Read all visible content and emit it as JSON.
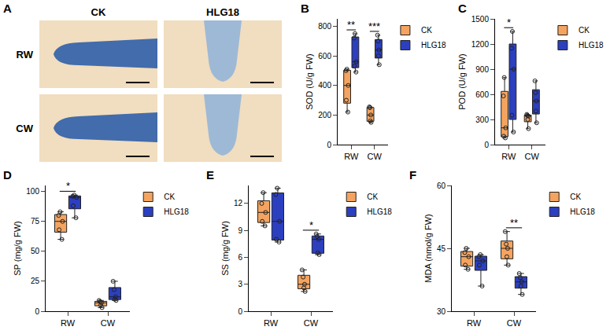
{
  "panel_A": {
    "panel_label": "A",
    "columns": [
      "CK",
      "HLG18"
    ],
    "rows": [
      "RW",
      "CW"
    ]
  },
  "chart_data": [
    {
      "type": "box",
      "panel_label": "B",
      "y_label": "SOD (U/g FW)",
      "categories": [
        "RW",
        "CW"
      ],
      "series": [
        {
          "name": "CK",
          "color": "#F4A460",
          "values": [
            [
              510,
              500,
              400,
              300,
              220
            ],
            [
              150,
              160,
              200,
              250,
              255
            ]
          ]
        },
        {
          "name": "HLG18",
          "color": "#2B3FBF",
          "values": [
            [
              490,
              530,
              560,
              720,
              750
            ],
            [
              540,
              600,
              640,
              700,
              740
            ]
          ]
        }
      ],
      "ylim": [
        0,
        850
      ],
      "yticks": [
        0,
        200,
        400,
        600,
        800
      ],
      "legend": "right",
      "annotations": [
        {
          "category": "RW",
          "text": "**"
        },
        {
          "category": "CW",
          "text": "***"
        }
      ]
    },
    {
      "type": "box",
      "panel_label": "C",
      "y_label": "POD (U/g FW)",
      "categories": [
        "RW",
        "CW"
      ],
      "series": [
        {
          "name": "CK",
          "color": "#F4A460",
          "values": [
            [
              80,
              100,
              200,
              580,
              800
            ],
            [
              190,
              300,
              340,
              350,
              360
            ]
          ]
        },
        {
          "name": "HLG18",
          "color": "#2B3FBF",
          "values": [
            [
              150,
              350,
              900,
              1150,
              1350
            ],
            [
              260,
              400,
              520,
              620,
              760
            ]
          ]
        }
      ],
      "ylim": [
        0,
        1500
      ],
      "yticks": [
        0,
        300,
        600,
        900,
        1200,
        1500
      ],
      "legend": "right",
      "annotations": [
        {
          "category": "RW",
          "text": "*"
        }
      ]
    },
    {
      "type": "box",
      "panel_label": "D",
      "y_label": "SP (mg/g FW)",
      "categories": [
        "RW",
        "CW"
      ],
      "series": [
        {
          "name": "CK",
          "color": "#F4A460",
          "values": [
            [
              60,
              68,
              75,
              80,
              83
            ],
            [
              3,
              5,
              7,
              8,
              9
            ]
          ]
        },
        {
          "name": "HLG18",
          "color": "#2B3FBF",
          "values": [
            [
              78,
              88,
              95,
              96,
              97
            ],
            [
              9,
              10,
              12,
              18,
              25
            ]
          ]
        }
      ],
      "ylim": [
        0,
        105
      ],
      "yticks": [
        0,
        25,
        50,
        75,
        100
      ],
      "legend": "right",
      "annotations": [
        {
          "category": "RW",
          "text": "*"
        }
      ]
    },
    {
      "type": "box",
      "panel_label": "E",
      "y_label": "SS (mg/g FW)",
      "categories": [
        "RW",
        "CW"
      ],
      "series": [
        {
          "name": "CK",
          "color": "#F4A460",
          "values": [
            [
              9.5,
              10,
              11,
              12,
              13.2
            ],
            [
              2.2,
              2.6,
              3,
              3.8,
              4.6
            ]
          ]
        },
        {
          "name": "HLG18",
          "color": "#2B3FBF",
          "values": [
            [
              7.7,
              8,
              10,
              13,
              13.7
            ],
            [
              6.3,
              6.5,
              8,
              8.3,
              8.6
            ]
          ]
        }
      ],
      "ylim": [
        0,
        14
      ],
      "yticks": [
        0,
        3,
        6,
        9,
        12
      ],
      "legend": "right",
      "annotations": [
        {
          "category": "CW",
          "text": "*"
        }
      ]
    },
    {
      "type": "box",
      "panel_label": "F",
      "y_label": "MDA (nmol/g FW)",
      "categories": [
        "RW",
        "CW"
      ],
      "series": [
        {
          "name": "CK",
          "color": "#F4A460",
          "values": [
            [
              40,
              41,
              43,
              44,
              45
            ],
            [
              41,
              43,
              45,
              46,
              49
            ]
          ]
        },
        {
          "name": "HLG18",
          "color": "#2B3FBF",
          "values": [
            [
              36,
              41,
              42,
              43,
              43.5
            ],
            [
              34,
              36,
              37,
              38,
              39
            ]
          ]
        }
      ],
      "ylim": [
        30,
        60
      ],
      "yticks": [
        30,
        45,
        60
      ],
      "legend": "right",
      "annotations": [
        {
          "category": "CW",
          "text": "**"
        }
      ]
    }
  ]
}
